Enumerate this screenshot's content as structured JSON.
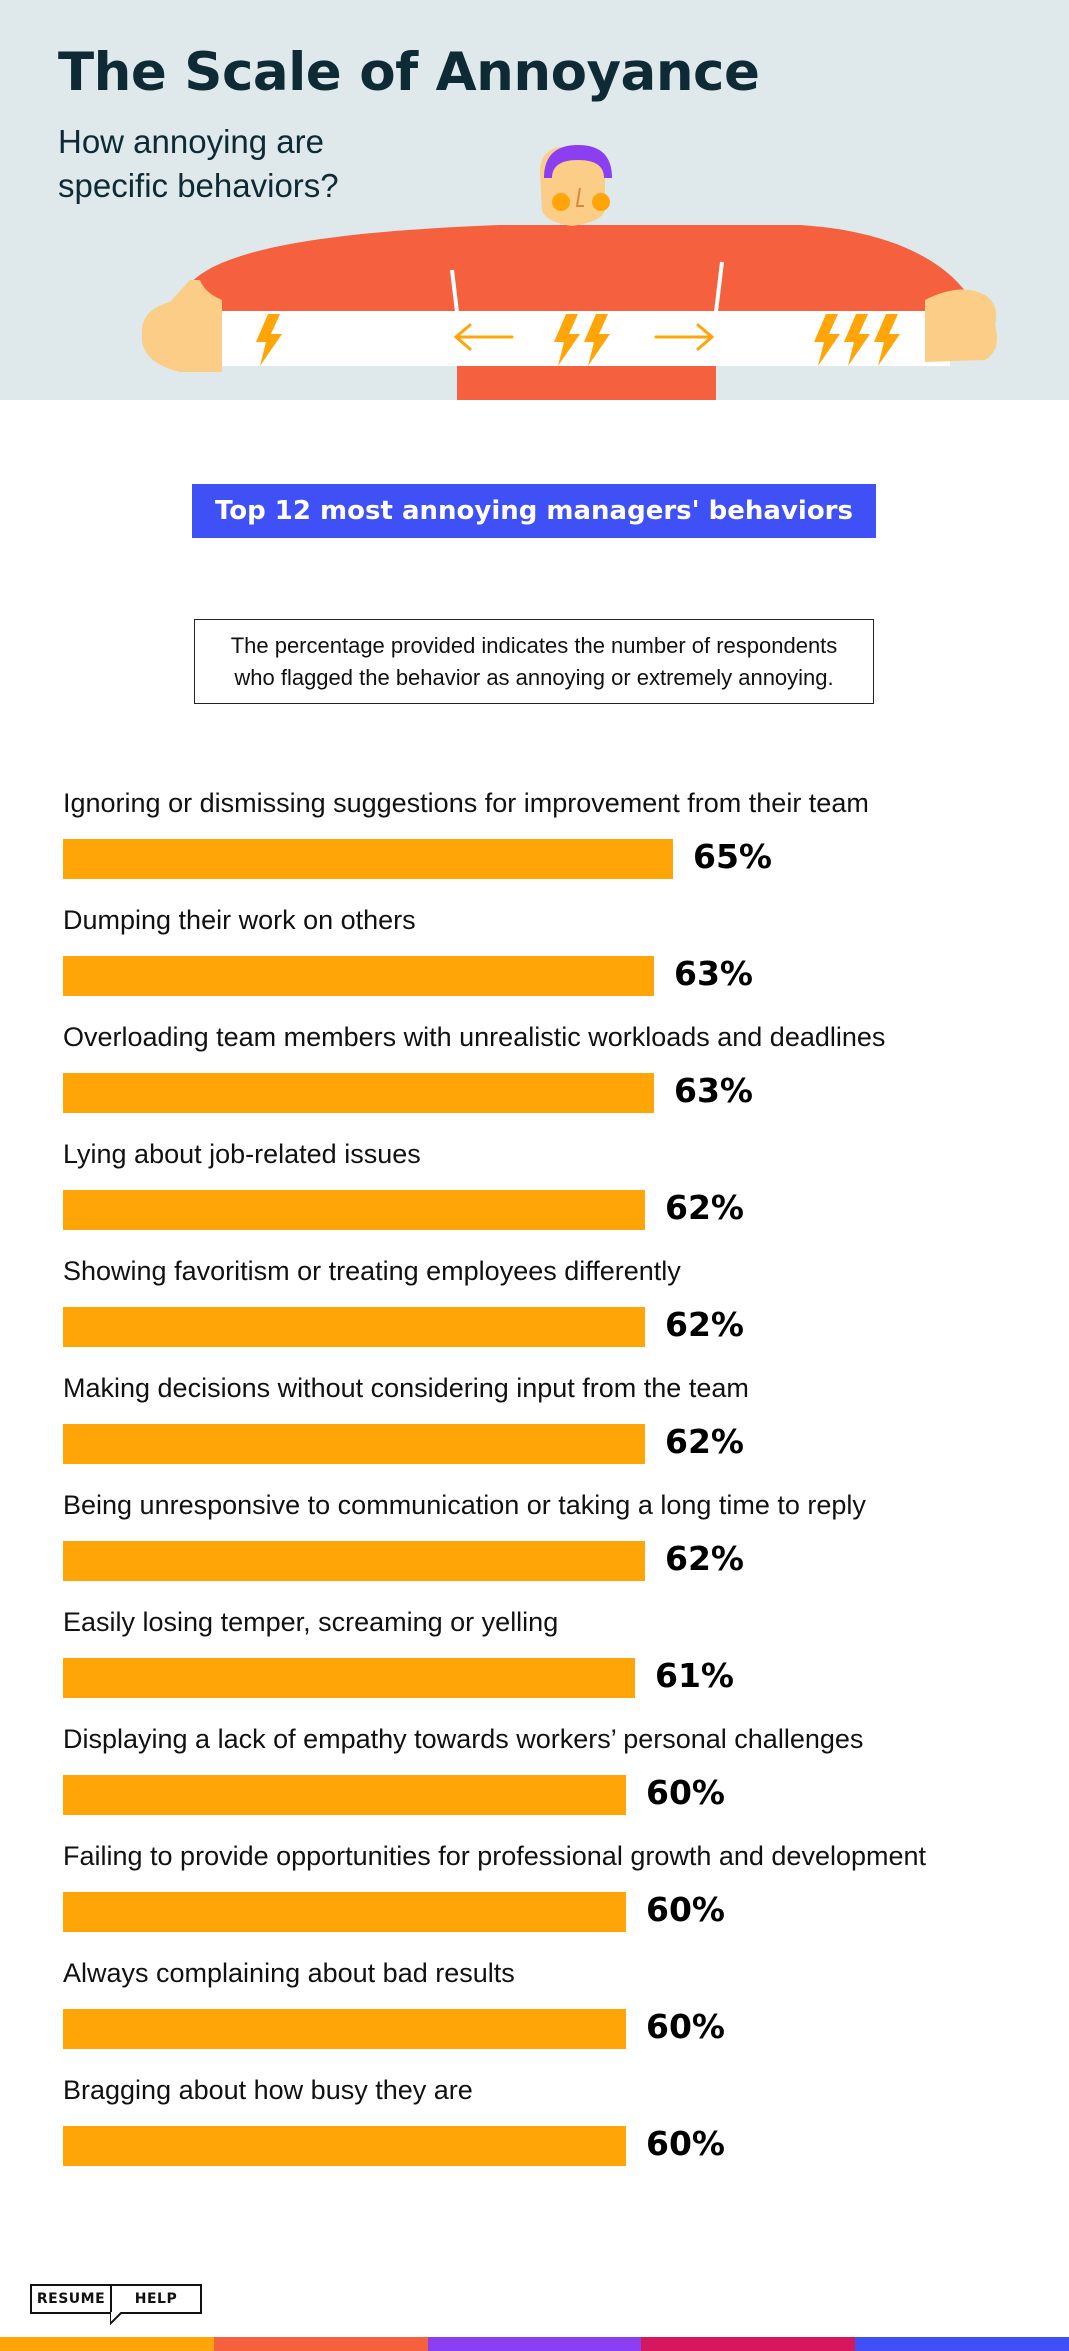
{
  "header": {
    "title": "The Scale of Annoyance",
    "subtitle": "How annoying are specific behaviors?"
  },
  "banner": "Top 12 most annoying managers' behaviors",
  "note": "The percentage provided indicates the number of respondents who flagged the behavior as annoying or extremely annoying.",
  "illustration": {
    "icons": [
      "person-icon",
      "lightning-icon",
      "arrow-left-icon",
      "arrow-right-icon"
    ],
    "colors": {
      "shirt": "#f5603f",
      "skin": "#fbcd86",
      "hair": "#8b3ff0",
      "band": "#ffffff",
      "bolt": "#ffa508"
    }
  },
  "chart_data": {
    "type": "bar",
    "orientation": "horizontal",
    "title": "Top 12 most annoying managers' behaviors",
    "categories": [
      "Ignoring or dismissing suggestions for improvement from their team",
      "Dumping their work on others",
      "Overloading team members with unrealistic workloads and deadlines",
      "Lying about job-related issues",
      "Showing favoritism or treating employees differently",
      "Making decisions without considering input from the team",
      "Being unresponsive to communication or taking a long time to reply",
      "Easily losing temper, screaming or yelling",
      "Displaying a lack of empathy towards workers’ personal challenges",
      "Failing to provide opportunities for professional growth and development",
      "Always complaining about bad results",
      "Bragging about how busy they are"
    ],
    "values": [
      65,
      63,
      63,
      62,
      62,
      62,
      62,
      61,
      60,
      60,
      60,
      60
    ],
    "labels": [
      "65%",
      "63%",
      "63%",
      "62%",
      "62%",
      "62%",
      "62%",
      "61%",
      "60%",
      "60%",
      "60%",
      "60%"
    ],
    "unit": "%",
    "bar_color": "#ffa508",
    "grid": false,
    "legend": "none"
  },
  "logo": {
    "left": "RESUME",
    "right": "HELP"
  },
  "footer": {
    "stripe_colors": [
      "#ffa508",
      "#f5603f",
      "#8b3ff0",
      "#d6175d",
      "#3f51f6"
    ]
  }
}
